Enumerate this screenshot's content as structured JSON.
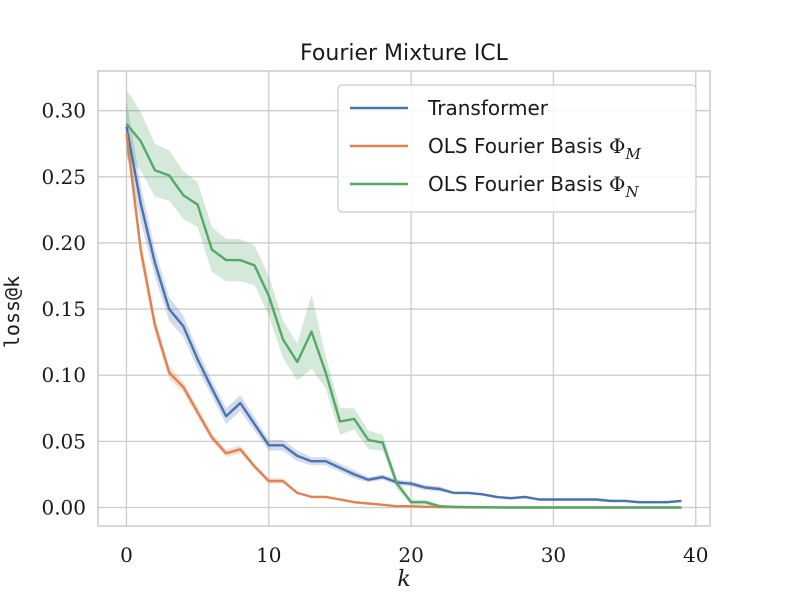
{
  "chart_data": {
    "type": "line",
    "title": "Fourier Mixture ICL",
    "xlabel": "k",
    "ylabel": "loss@k",
    "xlim": [
      -2,
      41
    ],
    "ylim": [
      -0.014,
      0.33
    ],
    "xticks": [
      0,
      10,
      20,
      30,
      40
    ],
    "yticks": [
      0.0,
      0.05,
      0.1,
      0.15,
      0.2,
      0.25,
      0.3
    ],
    "xtick_labels": [
      "0",
      "10",
      "20",
      "30",
      "40"
    ],
    "ytick_labels": [
      "0.00",
      "0.05",
      "0.10",
      "0.15",
      "0.20",
      "0.25",
      "0.30"
    ],
    "grid": true,
    "legend_position": "top-right",
    "series": [
      {
        "name": "Transformer",
        "name_main": "Transformer",
        "name_math": "",
        "name_sub": "",
        "color": "#4c72b0",
        "x": [
          0,
          1,
          2,
          3,
          4,
          5,
          6,
          7,
          8,
          9,
          10,
          11,
          12,
          13,
          14,
          15,
          16,
          17,
          18,
          19,
          20,
          21,
          22,
          23,
          24,
          25,
          26,
          27,
          28,
          29,
          30,
          31,
          32,
          33,
          34,
          35,
          36,
          37,
          38,
          39
        ],
        "y": [
          0.288,
          0.23,
          0.185,
          0.15,
          0.137,
          0.112,
          0.09,
          0.069,
          0.079,
          0.063,
          0.047,
          0.047,
          0.039,
          0.035,
          0.035,
          0.03,
          0.025,
          0.021,
          0.023,
          0.019,
          0.018,
          0.015,
          0.014,
          0.011,
          0.011,
          0.01,
          0.008,
          0.007,
          0.008,
          0.006,
          0.006,
          0.006,
          0.006,
          0.006,
          0.005,
          0.005,
          0.004,
          0.004,
          0.004,
          0.005
        ],
        "band": [
          0.02,
          0.014,
          0.01,
          0.009,
          0.008,
          0.007,
          0.006,
          0.006,
          0.006,
          0.005,
          0.004,
          0.004,
          0.004,
          0.003,
          0.003,
          0.003,
          0.003,
          0.002,
          0.002,
          0.002,
          0.002,
          0.002,
          0.002,
          0.001,
          0.001,
          0.001,
          0.001,
          0.001,
          0.001,
          0.001,
          0.001,
          0.001,
          0.001,
          0.001,
          0.001,
          0.001,
          0.001,
          0.001,
          0.001,
          0.001
        ]
      },
      {
        "name": "OLS Fourier Basis Φ_M",
        "name_main": "OLS Fourier Basis ",
        "name_math": "Φ",
        "name_sub": "M",
        "color": "#dd8452",
        "x": [
          0,
          1,
          2,
          3,
          4,
          5,
          6,
          7,
          8,
          9,
          10,
          11,
          12,
          13,
          14,
          15,
          16,
          17,
          18,
          19,
          20,
          21,
          22,
          23,
          24,
          25,
          26,
          27,
          28,
          29,
          30,
          31,
          32,
          33,
          34,
          35,
          36,
          37,
          38,
          39
        ],
        "y": [
          0.283,
          0.195,
          0.138,
          0.102,
          0.091,
          0.072,
          0.053,
          0.041,
          0.044,
          0.031,
          0.02,
          0.02,
          0.011,
          0.008,
          0.008,
          0.006,
          0.004,
          0.003,
          0.002,
          0.001,
          0.001,
          0.0005,
          0.0003,
          0.0002,
          0.0001,
          0.0001,
          0.0001,
          0.0001,
          0,
          0,
          0,
          0,
          0,
          0,
          0,
          0,
          0,
          0,
          0,
          0
        ],
        "band": [
          0.01,
          0.008,
          0.006,
          0.005,
          0.004,
          0.004,
          0.003,
          0.003,
          0.003,
          0.002,
          0.002,
          0.002,
          0.001,
          0.001,
          0.001,
          0.001,
          0.001,
          0.0005,
          0.0005,
          0.0003,
          0.0003,
          0.0002,
          0.0001,
          0,
          0,
          0,
          0,
          0,
          0,
          0,
          0,
          0,
          0,
          0,
          0,
          0,
          0,
          0,
          0,
          0
        ]
      },
      {
        "name": "OLS Fourier Basis Φ_N",
        "name_main": "OLS Fourier Basis ",
        "name_math": "Φ",
        "name_sub": "N",
        "color": "#55a868",
        "x": [
          0,
          1,
          2,
          3,
          4,
          5,
          6,
          7,
          8,
          9,
          10,
          11,
          12,
          13,
          14,
          15,
          16,
          17,
          18,
          19,
          20,
          21,
          22,
          23,
          24,
          25,
          26,
          27,
          28,
          29,
          30,
          31,
          32,
          33,
          34,
          35,
          36,
          37,
          38,
          39
        ],
        "y": [
          0.29,
          0.277,
          0.255,
          0.251,
          0.236,
          0.229,
          0.195,
          0.187,
          0.187,
          0.183,
          0.16,
          0.127,
          0.11,
          0.133,
          0.102,
          0.065,
          0.067,
          0.051,
          0.049,
          0.018,
          0.004,
          0.004,
          0.001,
          0.0005,
          0.0003,
          0.0002,
          0.0001,
          0,
          0,
          0,
          0,
          0,
          0,
          0,
          0,
          0,
          0,
          0,
          0,
          0
        ],
        "band": [
          0.026,
          0.022,
          0.02,
          0.019,
          0.018,
          0.017,
          0.017,
          0.016,
          0.016,
          0.015,
          0.015,
          0.014,
          0.014,
          0.028,
          0.012,
          0.01,
          0.008,
          0.007,
          0.006,
          0.004,
          0.002,
          0.002,
          0.001,
          0,
          0,
          0,
          0,
          0,
          0,
          0,
          0,
          0,
          0,
          0,
          0,
          0,
          0,
          0,
          0,
          0
        ]
      }
    ]
  }
}
